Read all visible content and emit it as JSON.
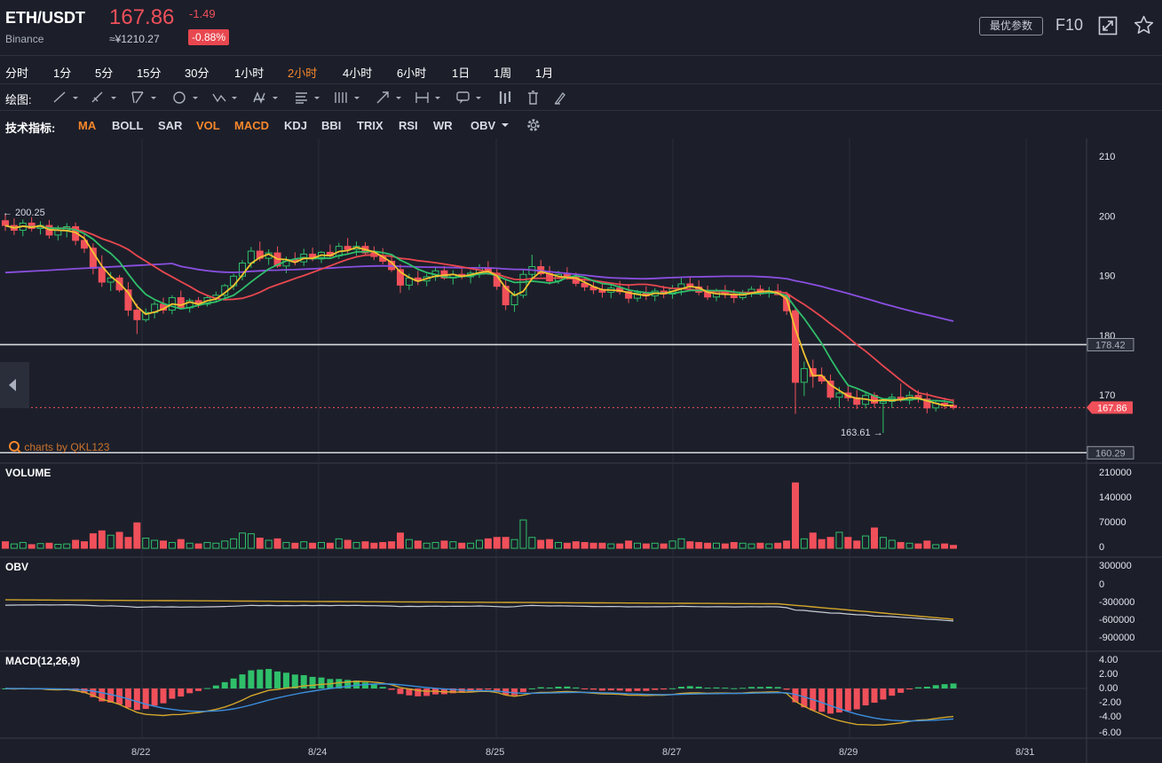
{
  "header": {
    "pair": "ETH/USDT",
    "exchange": "Binance",
    "price": "167.86",
    "cny_price": "≈¥1210.27",
    "change": "-1.49",
    "change_pct": "-0.88%",
    "best_params_label": "最优参数",
    "f10_label": "F10",
    "colors": {
      "down": "#f0505a",
      "up": "#2fbf6a",
      "accent": "#f7872a"
    }
  },
  "timeframes": {
    "items": [
      "分时",
      "1分",
      "5分",
      "15分",
      "30分",
      "1小时",
      "2小时",
      "4小时",
      "6小时",
      "1日",
      "1周",
      "1月"
    ],
    "active": "2小时"
  },
  "drawing": {
    "label": "绘图:",
    "tools": [
      "line-tool",
      "ray-tool",
      "channel-tool",
      "circle-tool",
      "zigzag-tool",
      "pattern-tool",
      "fib-tool",
      "gann-tool",
      "arrow-tool",
      "range-tool",
      "text-tool",
      "candle-tool",
      "trash-tool",
      "brush-tool"
    ]
  },
  "indicators": {
    "label": "技术指标:",
    "items": [
      "MA",
      "BOLL",
      "SAR",
      "VOL",
      "MACD",
      "KDJ",
      "BBI",
      "TRIX",
      "RSI",
      "WR",
      "OBV"
    ],
    "active": [
      "MA",
      "VOL",
      "MACD"
    ]
  },
  "chart_data": {
    "type": "candlestick",
    "main": {
      "y_ticks": [
        210,
        200,
        190,
        180,
        170
      ],
      "high_marker": "← 200.25",
      "low_marker": "163.61 →",
      "hlines": [
        {
          "value": 178.42,
          "label": "178.42"
        },
        {
          "value": 160.29,
          "label": "160.29"
        }
      ],
      "last_price": {
        "value": 167.86,
        "label": "167.86"
      },
      "watermark": "charts by QKL123"
    },
    "x_ticks": [
      "8/22",
      "8/24",
      "8/25",
      "8/27",
      "8/29",
      "8/31"
    ],
    "volume": {
      "label": "VOLUME",
      "y_ticks": [
        "210000",
        "140000",
        "70000",
        "0"
      ]
    },
    "obv": {
      "label": "OBV",
      "y_ticks": [
        "300000",
        "0",
        "-300000",
        "-600000",
        "-900000"
      ]
    },
    "macd": {
      "label": "MACD(12,26,9)",
      "y_ticks": [
        "4.00",
        "2.00",
        "0.00",
        "-2.00",
        "-4.00",
        "-6.00"
      ]
    },
    "ohlc": [
      [
        199.2,
        200.3,
        197.5,
        198.4
      ],
      [
        198.4,
        199.6,
        196.8,
        197.6
      ],
      [
        197.6,
        199.4,
        196.6,
        198.8
      ],
      [
        198.8,
        199.8,
        197.4,
        197.9
      ],
      [
        197.9,
        199.1,
        196.9,
        198.4
      ],
      [
        198.4,
        199.3,
        196.2,
        196.8
      ],
      [
        196.8,
        198.4,
        195.9,
        197.6
      ],
      [
        197.6,
        198.8,
        196.4,
        198.2
      ],
      [
        198.2,
        198.9,
        195.1,
        195.9
      ],
      [
        195.9,
        197.0,
        193.8,
        194.6
      ],
      [
        194.6,
        195.4,
        190.2,
        191.2
      ],
      [
        191.2,
        193.4,
        188.1,
        188.9
      ],
      [
        188.9,
        190.6,
        187.4,
        189.6
      ],
      [
        189.6,
        190.1,
        187.2,
        187.6
      ],
      [
        187.6,
        188.9,
        183.2,
        184.2
      ],
      [
        184.2,
        185.3,
        180.2,
        182.6
      ],
      [
        182.6,
        184.5,
        182.2,
        183.8
      ],
      [
        183.8,
        185.7,
        182.8,
        185.2
      ],
      [
        185.2,
        186.3,
        183.6,
        184.2
      ],
      [
        184.2,
        186.7,
        183.5,
        186.3
      ],
      [
        186.3,
        187.5,
        184.3,
        184.6
      ],
      [
        184.6,
        186.2,
        183.8,
        185.8
      ],
      [
        185.8,
        186.4,
        184.6,
        185.2
      ],
      [
        185.2,
        186.6,
        184.8,
        186.3
      ],
      [
        186.3,
        187.3,
        185.6,
        186.7
      ],
      [
        186.7,
        188.6,
        186.2,
        188.3
      ],
      [
        188.3,
        190.3,
        187.6,
        189.9
      ],
      [
        189.9,
        192.6,
        189.2,
        192.1
      ],
      [
        192.1,
        194.8,
        191.3,
        194.1
      ],
      [
        194.1,
        195.7,
        192.4,
        192.9
      ],
      [
        192.9,
        194.4,
        191.8,
        193.8
      ],
      [
        193.8,
        194.9,
        191.3,
        191.6
      ],
      [
        191.6,
        193.2,
        190.4,
        192.7
      ],
      [
        192.7,
        193.9,
        191.7,
        192.3
      ],
      [
        192.3,
        194.5,
        191.6,
        193.6
      ],
      [
        193.6,
        194.7,
        192.4,
        192.8
      ],
      [
        192.8,
        194.1,
        192.1,
        193.9
      ],
      [
        193.9,
        195.2,
        193.0,
        193.3
      ],
      [
        193.3,
        195.5,
        192.8,
        194.9
      ],
      [
        194.9,
        196.3,
        193.6,
        194.4
      ],
      [
        194.4,
        195.7,
        193.3,
        194.9
      ],
      [
        194.9,
        195.6,
        193.4,
        193.8
      ],
      [
        193.8,
        194.9,
        192.6,
        193.2
      ],
      [
        193.2,
        194.6,
        191.9,
        192.4
      ],
      [
        192.4,
        193.6,
        190.6,
        191.0
      ],
      [
        191.0,
        191.9,
        187.1,
        188.4
      ],
      [
        188.4,
        190.3,
        187.6,
        189.6
      ],
      [
        189.6,
        190.8,
        188.4,
        189.1
      ],
      [
        189.1,
        190.3,
        188.2,
        189.8
      ],
      [
        189.8,
        191.4,
        189.1,
        190.8
      ],
      [
        190.8,
        191.6,
        189.3,
        189.6
      ],
      [
        189.6,
        190.9,
        188.5,
        190.2
      ],
      [
        190.2,
        191.2,
        189.4,
        189.8
      ],
      [
        189.8,
        190.8,
        188.7,
        190.4
      ],
      [
        190.4,
        191.9,
        189.6,
        191.3
      ],
      [
        191.3,
        192.4,
        190.1,
        190.4
      ],
      [
        190.4,
        191.1,
        187.6,
        188.2
      ],
      [
        188.2,
        189.3,
        184.2,
        185.1
      ],
      [
        185.1,
        187.4,
        183.9,
        186.7
      ],
      [
        186.7,
        190.9,
        186.2,
        190.2
      ],
      [
        190.2,
        193.5,
        189.6,
        191.5
      ],
      [
        191.5,
        192.6,
        189.9,
        190.3
      ],
      [
        190.3,
        191.6,
        188.5,
        189.1
      ],
      [
        189.1,
        190.8,
        188.6,
        190.2
      ],
      [
        190.2,
        191.4,
        189.3,
        189.8
      ],
      [
        189.8,
        190.5,
        188.2,
        188.7
      ],
      [
        188.7,
        189.6,
        187.4,
        188.1
      ],
      [
        188.1,
        189.3,
        186.9,
        187.6
      ],
      [
        187.6,
        188.7,
        186.3,
        187.2
      ],
      [
        187.2,
        188.5,
        186.2,
        187.9
      ],
      [
        187.9,
        189.1,
        186.8,
        187.3
      ],
      [
        187.3,
        188.6,
        185.4,
        186.2
      ],
      [
        186.2,
        187.6,
        185.6,
        187.1
      ],
      [
        187.1,
        188.2,
        185.9,
        186.6
      ],
      [
        186.6,
        187.9,
        185.7,
        187.4
      ],
      [
        187.4,
        188.3,
        186.2,
        186.9
      ],
      [
        186.9,
        188.4,
        186.1,
        187.8
      ],
      [
        187.8,
        189.6,
        186.7,
        188.6
      ],
      [
        188.6,
        189.8,
        187.5,
        188.1
      ],
      [
        188.1,
        189.2,
        186.7,
        187.2
      ],
      [
        187.2,
        188.3,
        185.9,
        186.4
      ],
      [
        186.4,
        187.8,
        185.7,
        187.3
      ],
      [
        187.3,
        188.4,
        186.2,
        186.9
      ],
      [
        186.9,
        187.7,
        185.4,
        186.3
      ],
      [
        186.3,
        187.6,
        185.9,
        187.1
      ],
      [
        187.1,
        188.2,
        186.4,
        187.7
      ],
      [
        187.7,
        188.4,
        186.6,
        187.1
      ],
      [
        187.1,
        188.1,
        186.3,
        187.4
      ],
      [
        187.4,
        188.6,
        186.8,
        186.8
      ],
      [
        186.8,
        187.3,
        183.4,
        184.1
      ],
      [
        184.1,
        184.6,
        166.8,
        172.1
      ],
      [
        172.1,
        175.6,
        169.8,
        174.4
      ],
      [
        174.4,
        175.9,
        171.2,
        173.1
      ],
      [
        173.1,
        174.6,
        171.8,
        172.3
      ],
      [
        172.3,
        173.4,
        169.2,
        169.6
      ],
      [
        169.6,
        171.3,
        167.9,
        170.3
      ],
      [
        170.3,
        171.7,
        168.9,
        169.5
      ],
      [
        169.5,
        170.8,
        167.6,
        168.4
      ],
      [
        168.4,
        170.6,
        167.7,
        169.9
      ],
      [
        169.9,
        170.4,
        167.9,
        168.6
      ],
      [
        168.6,
        169.4,
        163.6,
        168.9
      ],
      [
        168.9,
        170.2,
        167.8,
        169.6
      ],
      [
        169.6,
        171.9,
        168.8,
        169.1
      ],
      [
        169.1,
        170.6,
        168.4,
        169.9
      ],
      [
        169.9,
        170.8,
        168.7,
        169.3
      ],
      [
        169.3,
        170.4,
        166.9,
        167.8
      ],
      [
        167.8,
        169.1,
        167.2,
        168.6
      ],
      [
        168.6,
        169.5,
        167.6,
        168.2
      ],
      [
        168.2,
        169.3,
        167.5,
        167.86
      ]
    ],
    "volumes": [
      18000,
      12000,
      16000,
      10000,
      13000,
      14000,
      11000,
      12000,
      22000,
      18000,
      40000,
      48000,
      36000,
      44000,
      30000,
      70000,
      28000,
      22000,
      20000,
      16000,
      24000,
      14000,
      12000,
      16000,
      14000,
      20000,
      26000,
      42000,
      40000,
      28000,
      22000,
      26000,
      16000,
      14000,
      18000,
      14000,
      16000,
      14000,
      26000,
      22000,
      16000,
      18000,
      14000,
      16000,
      18000,
      42000,
      24000,
      20000,
      14000,
      16000,
      20000,
      18000,
      14000,
      14000,
      22000,
      26000,
      30000,
      30000,
      24000,
      78000,
      30000,
      22000,
      24000,
      16000,
      14000,
      18000,
      16000,
      14000,
      14000,
      12000,
      12000,
      20000,
      14000,
      12000,
      14000,
      12000,
      20000,
      26000,
      18000,
      16000,
      14000,
      14000,
      12000,
      16000,
      14000,
      12000,
      14000,
      12000,
      14000,
      20000,
      180000,
      26000,
      42000,
      24000,
      30000,
      44000,
      30000,
      20000,
      34000,
      56000,
      30000,
      22000,
      16000,
      14000,
      12000,
      20000,
      10000,
      12000,
      8000
    ],
    "up_volume_flags": [
      0,
      1,
      1,
      0,
      1,
      0,
      1,
      1,
      0,
      0,
      0,
      0,
      1,
      0,
      0,
      0,
      1,
      1,
      0,
      1,
      0,
      1,
      0,
      1,
      1,
      1,
      1,
      1,
      1,
      0,
      1,
      0,
      1,
      0,
      1,
      0,
      1,
      0,
      1,
      0,
      1,
      0,
      0,
      0,
      0,
      0,
      1,
      0,
      1,
      1,
      0,
      1,
      0,
      1,
      1,
      0,
      0,
      0,
      1,
      1,
      1,
      0,
      0,
      1,
      0,
      0,
      0,
      0,
      0,
      1,
      0,
      0,
      1,
      0,
      1,
      0,
      1,
      1,
      0,
      0,
      0,
      1,
      0,
      0,
      1,
      1,
      0,
      1,
      0,
      0,
      0,
      1,
      0,
      0,
      0,
      1,
      0,
      0,
      1,
      0,
      1,
      1,
      0,
      1,
      0,
      0,
      1,
      0,
      0
    ]
  }
}
